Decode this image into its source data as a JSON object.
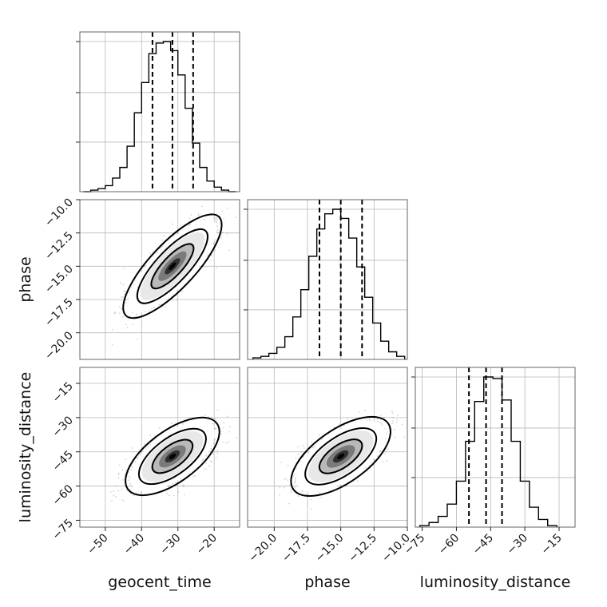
{
  "chart_data": {
    "type": "corner",
    "grid": true,
    "parameters": [
      {
        "name": "geocent_time",
        "label": "geocent_time",
        "range": [
          -57,
          -13
        ],
        "ticks": [
          -50,
          -40,
          -30,
          -20
        ],
        "mean": -31.5,
        "sd": 5.5,
        "quantiles": [
          -37,
          -31.5,
          -25.8
        ]
      },
      {
        "name": "phase",
        "label": "phase",
        "range": [
          -22,
          -10
        ],
        "ticks": [
          -20.0,
          -17.5,
          -15.0,
          -12.5,
          -10.0
        ],
        "mean": -15.0,
        "sd": 1.6,
        "quantiles": [
          -16.6,
          -15.0,
          -13.4
        ]
      },
      {
        "name": "luminosity_distance",
        "label": "luminosity_distance",
        "range": [
          -78,
          -8
        ],
        "ticks": [
          -75,
          -60,
          -45,
          -30,
          -15
        ],
        "mean": -47.0,
        "sd": 6.5,
        "quantiles": [
          -54.5,
          -47.0,
          -40.0
        ]
      }
    ],
    "correlations": [
      {
        "x": "geocent_time",
        "y": "phase",
        "rho": 0.8
      },
      {
        "x": "geocent_time",
        "y": "luminosity_distance",
        "rho": 0.65
      },
      {
        "x": "phase",
        "y": "luminosity_distance",
        "rho": 0.65
      }
    ],
    "marginals": [
      {
        "parameter": "geocent_time",
        "bin_edges": [
          -56,
          -54,
          -52,
          -50,
          -48,
          -46,
          -44,
          -42,
          -40,
          -38,
          -36,
          -34,
          -32,
          -30,
          -28,
          -26,
          -24,
          -22,
          -20,
          -18,
          -16,
          -14
        ],
        "counts": [
          0.0,
          0.01,
          0.02,
          0.04,
          0.09,
          0.16,
          0.3,
          0.52,
          0.72,
          0.91,
          0.98,
          0.99,
          0.93,
          0.77,
          0.55,
          0.32,
          0.16,
          0.07,
          0.03,
          0.01,
          0.0
        ]
      },
      {
        "parameter": "phase",
        "bin_edges": [
          -21.6,
          -21.0,
          -20.4,
          -19.8,
          -19.2,
          -18.6,
          -18.0,
          -17.4,
          -16.8,
          -16.2,
          -15.6,
          -15.0,
          -14.4,
          -13.8,
          -13.2,
          -12.6,
          -12.0,
          -11.4,
          -10.8,
          -10.2
        ],
        "counts": [
          0.01,
          0.02,
          0.04,
          0.08,
          0.15,
          0.28,
          0.46,
          0.68,
          0.86,
          0.96,
          0.99,
          0.93,
          0.8,
          0.61,
          0.41,
          0.24,
          0.12,
          0.05,
          0.02
        ]
      },
      {
        "parameter": "luminosity_distance",
        "bin_edges": [
          -76,
          -72,
          -68,
          -64,
          -60,
          -56,
          -52,
          -48,
          -44,
          -40,
          -36,
          -32,
          -28,
          -24,
          -20,
          -16
        ],
        "counts": [
          0.01,
          0.03,
          0.07,
          0.15,
          0.3,
          0.56,
          0.82,
          0.98,
          0.97,
          0.83,
          0.56,
          0.3,
          0.13,
          0.05,
          0.01
        ]
      }
    ]
  }
}
